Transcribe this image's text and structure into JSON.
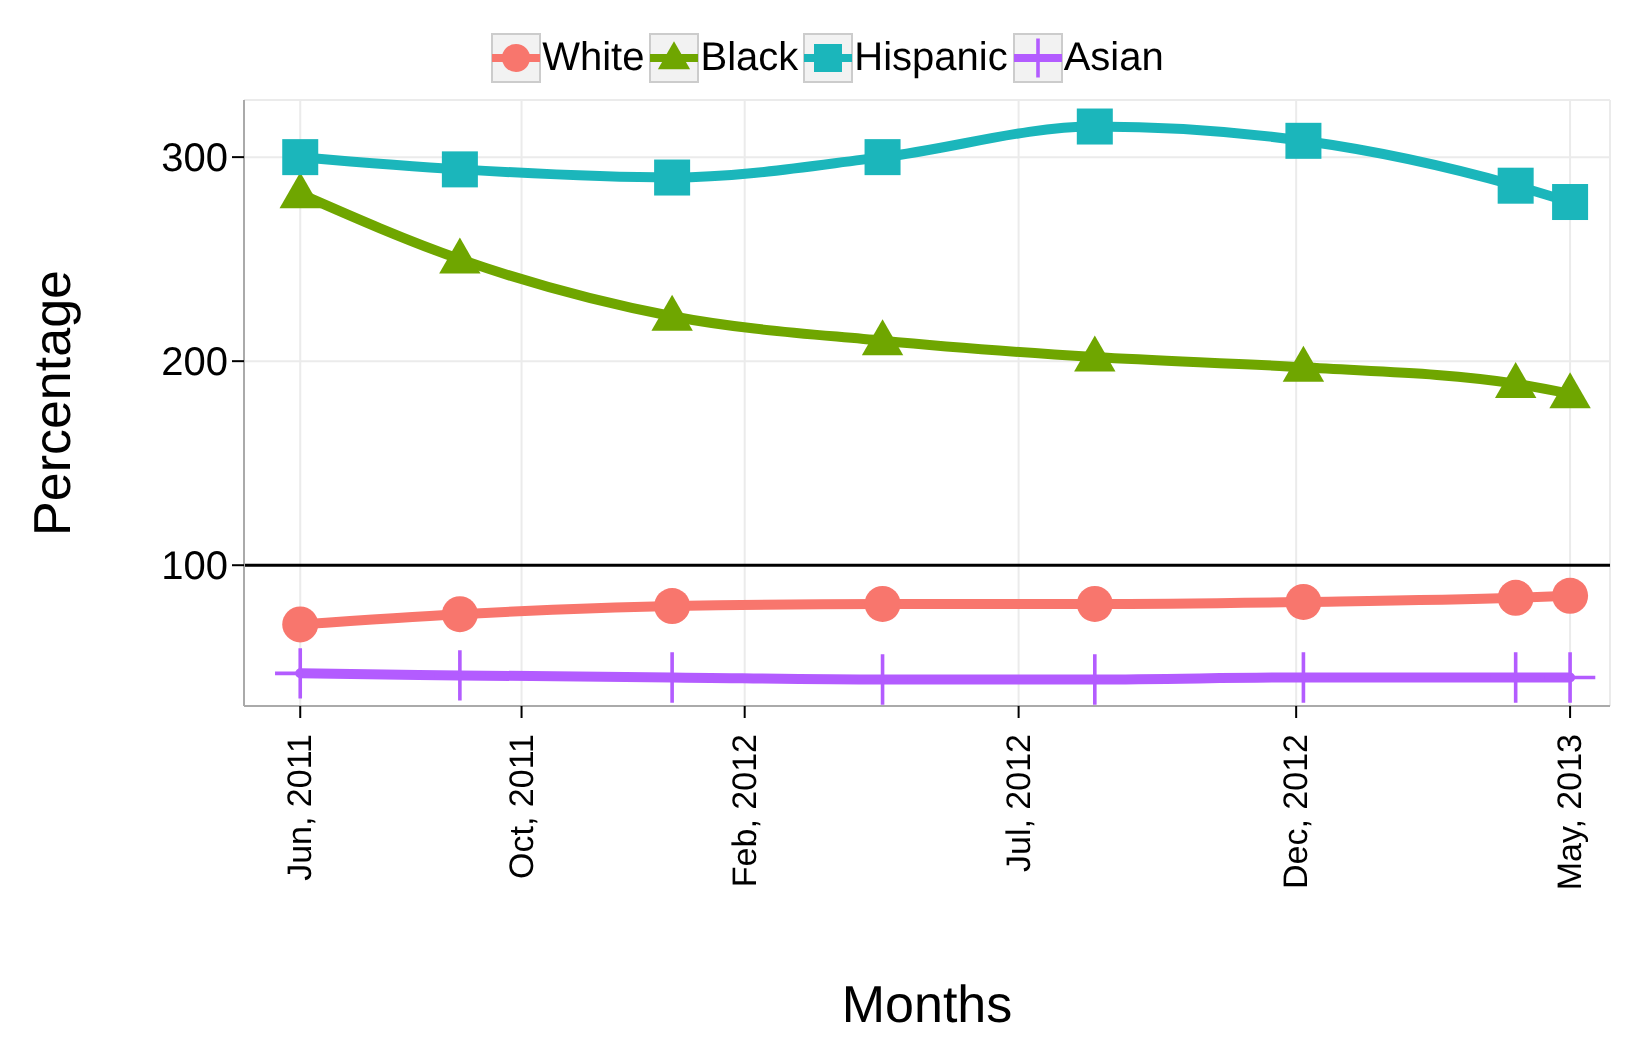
{
  "chart_data": {
    "type": "line",
    "xlabel": "Months",
    "ylabel": "Percentage",
    "x": [
      "2011-06-01",
      "2011-08-28",
      "2011-12-23",
      "2012-04-17",
      "2012-08-12",
      "2012-12-05",
      "2013-04-01",
      "2013-05-01"
    ],
    "series": [
      {
        "name": "White",
        "color": "#f8766d",
        "marker": "circle",
        "values": [
          71,
          76,
          80,
          81,
          81,
          82,
          84,
          85
        ]
      },
      {
        "name": "Black",
        "color": "#6fa600",
        "marker": "triangle",
        "values": [
          282,
          250,
          222,
          210,
          202,
          197,
          189,
          184
        ]
      },
      {
        "name": "Hispanic",
        "color": "#1bb6bb",
        "marker": "square",
        "values": [
          300,
          294,
          290,
          300,
          315,
          308,
          286,
          278
        ]
      },
      {
        "name": "Asian",
        "color": "#b35cff",
        "marker": "cross",
        "values": [
          47,
          46,
          45,
          44,
          44,
          45,
          45,
          45
        ]
      }
    ],
    "xlim": [
      "2011-05-01",
      "2013-05-23"
    ],
    "xticks": [
      {
        "value": "2011-06-01",
        "label": "Jun, 2011"
      },
      {
        "value": "2011-10-01",
        "label": "Oct, 2011"
      },
      {
        "value": "2012-02-01",
        "label": "Feb, 2012"
      },
      {
        "value": "2012-07-01",
        "label": "Jul, 2012"
      },
      {
        "value": "2012-12-01",
        "label": "Dec, 2012"
      },
      {
        "value": "2013-05-01",
        "label": "May, 2013"
      }
    ],
    "ylim": [
      31,
      328
    ],
    "yticks": [
      100,
      200,
      300
    ],
    "ref_lines": [
      {
        "axis": "y",
        "value": 100,
        "color": "#000000"
      }
    ],
    "grid": true,
    "legend": "top",
    "line_style": "solid"
  }
}
